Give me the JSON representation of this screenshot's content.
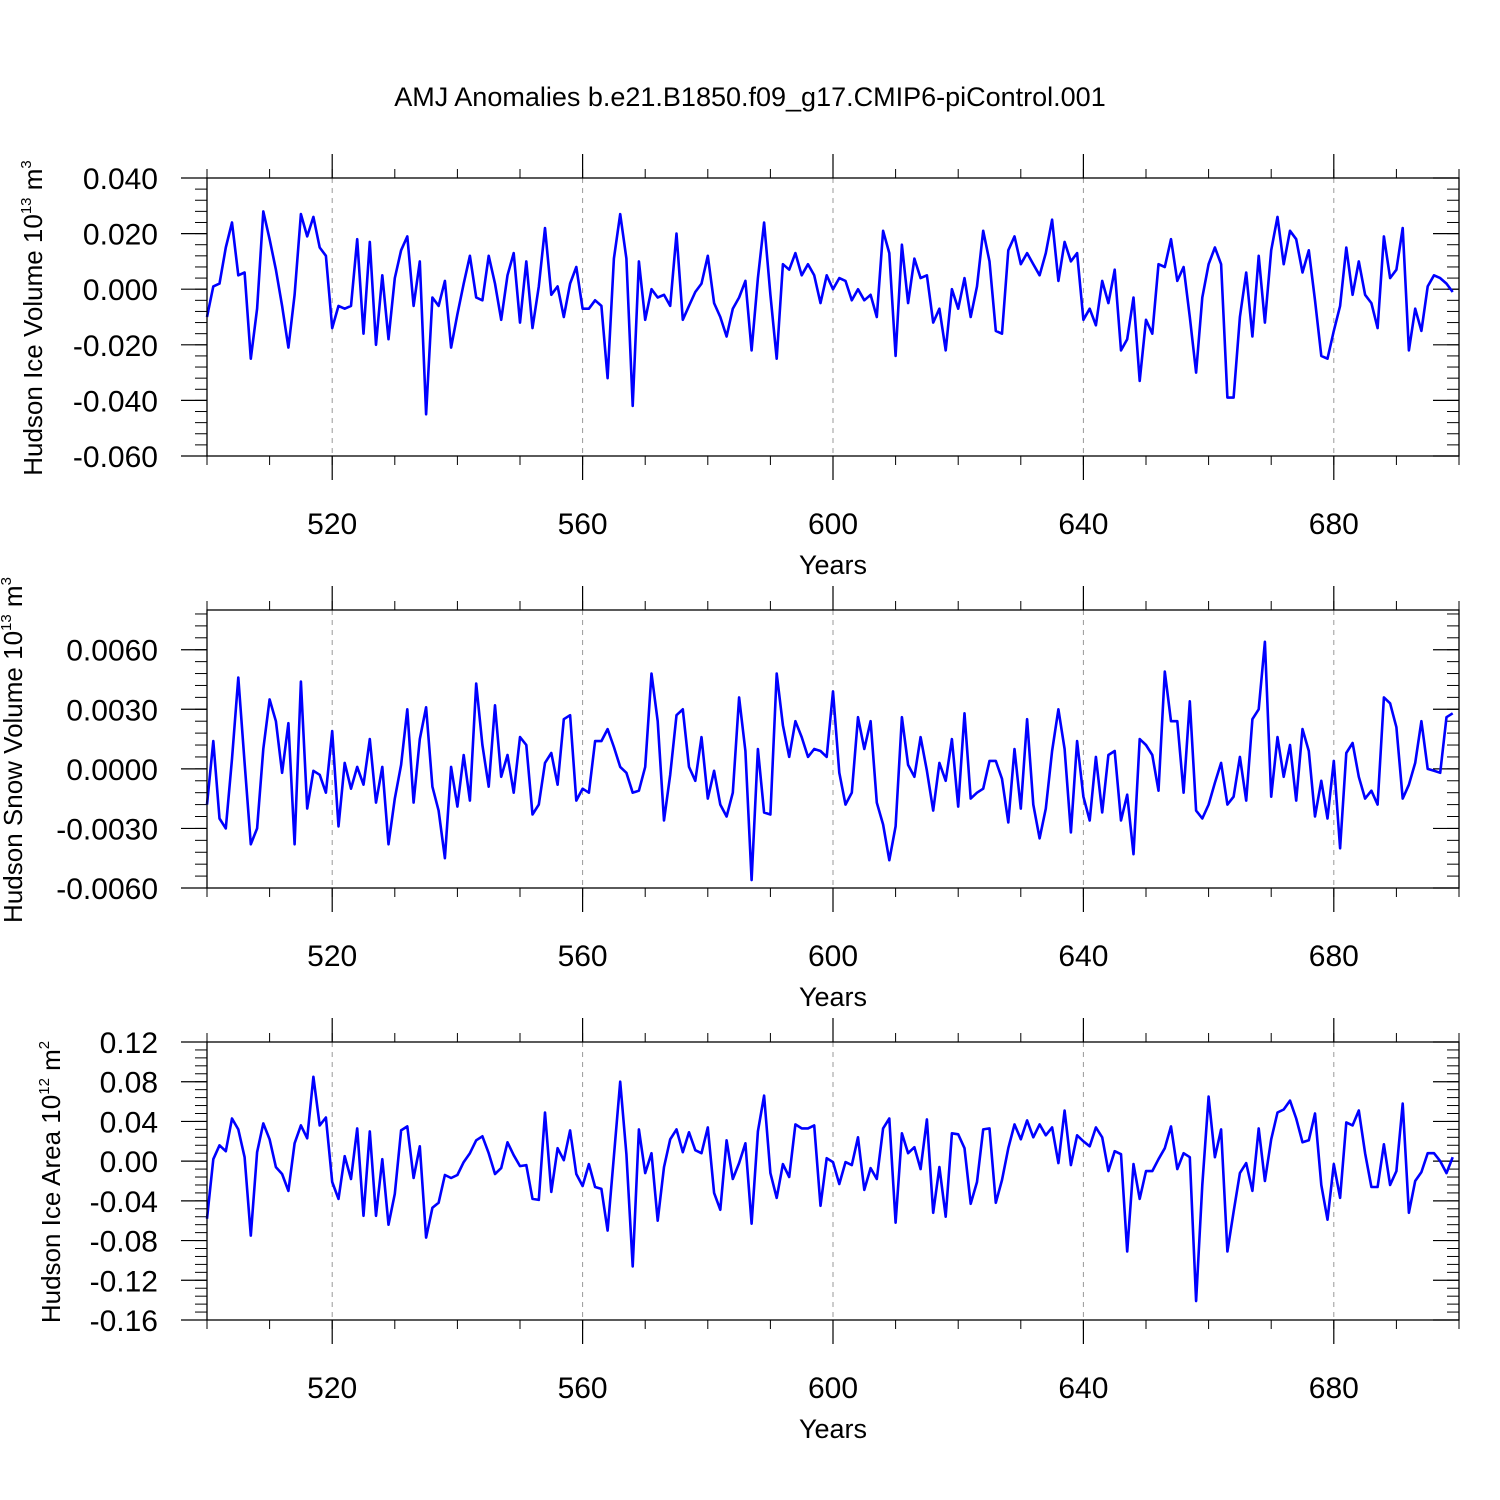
{
  "figure": {
    "title": "AMJ Anomalies b.e21.B1850.f09_g17.CMIP6-piControl.001",
    "line_color": "#0000ff",
    "grid_color": "#999999"
  },
  "chart_data": [
    {
      "type": "line",
      "name": "hudson-ice-volume",
      "ylabel_main": "Hudson Ice Volume 10",
      "ylabel_exp": "13",
      "ylabel_unit": " m",
      "ylabel_unit_exp": "3",
      "xlabel": "Years",
      "xlim": [
        500,
        700
      ],
      "xticks": [
        520,
        560,
        600,
        640,
        680
      ],
      "ylim": [
        -0.06,
        0.04
      ],
      "yticks": [
        -0.06,
        -0.04,
        -0.02,
        0.0,
        0.02,
        0.04
      ],
      "ytick_labels": [
        "-0.060",
        "-0.040",
        "-0.020",
        "0.000",
        "0.020",
        "0.040"
      ],
      "x_start": 500,
      "values": [
        -0.01,
        0.001,
        0.002,
        0.015,
        0.024,
        0.005,
        0.006,
        -0.025,
        -0.007,
        0.028,
        0.018,
        0.007,
        -0.006,
        -0.021,
        -0.002,
        0.027,
        0.019,
        0.026,
        0.015,
        0.012,
        -0.014,
        -0.006,
        -0.007,
        -0.006,
        0.018,
        -0.016,
        0.017,
        -0.02,
        0.005,
        -0.018,
        0.004,
        0.014,
        0.019,
        -0.006,
        0.01,
        -0.045,
        -0.003,
        -0.006,
        0.003,
        -0.021,
        -0.009,
        0.002,
        0.012,
        -0.003,
        -0.004,
        0.012,
        0.002,
        -0.011,
        0.005,
        0.013,
        -0.012,
        0.01,
        -0.014,
        0.001,
        0.022,
        -0.002,
        0.001,
        -0.01,
        0.002,
        0.008,
        -0.007,
        -0.007,
        -0.004,
        -0.006,
        -0.032,
        0.011,
        0.027,
        0.011,
        -0.042,
        0.01,
        -0.011,
        0.0,
        -0.003,
        -0.002,
        -0.006,
        0.02,
        -0.011,
        -0.006,
        -0.001,
        0.002,
        0.012,
        -0.005,
        -0.01,
        -0.017,
        -0.007,
        -0.003,
        0.003,
        -0.022,
        0.004,
        0.024,
        -0.002,
        -0.025,
        0.009,
        0.007,
        0.013,
        0.005,
        0.009,
        0.005,
        -0.005,
        0.005,
        0.0,
        0.004,
        0.003,
        -0.004,
        0.0,
        -0.004,
        -0.002,
        -0.01,
        0.021,
        0.013,
        -0.024,
        0.016,
        -0.005,
        0.011,
        0.004,
        0.005,
        -0.012,
        -0.007,
        -0.022,
        0.0,
        -0.007,
        0.004,
        -0.01,
        0.001,
        0.021,
        0.01,
        -0.015,
        -0.016,
        0.014,
        0.019,
        0.009,
        0.013,
        0.009,
        0.005,
        0.013,
        0.025,
        0.003,
        0.017,
        0.01,
        0.013,
        -0.011,
        -0.007,
        -0.013,
        0.003,
        -0.005,
        0.007,
        -0.022,
        -0.018,
        -0.003,
        -0.033,
        -0.011,
        -0.016,
        0.009,
        0.008,
        0.018,
        0.003,
        0.008,
        -0.01,
        -0.03,
        -0.003,
        0.009,
        0.015,
        0.009,
        -0.039,
        -0.039,
        -0.01,
        0.006,
        -0.017,
        0.012,
        -0.012,
        0.014,
        0.026,
        0.009,
        0.021,
        0.018,
        0.006,
        0.014,
        -0.004,
        -0.024,
        -0.025,
        -0.015,
        -0.006,
        0.015,
        -0.002,
        0.01,
        -0.002,
        -0.005,
        -0.014,
        0.019,
        0.004,
        0.007,
        0.022,
        -0.022,
        -0.007,
        -0.015,
        0.001,
        0.005,
        0.004,
        0.002,
        -0.001
      ]
    },
    {
      "type": "line",
      "name": "hudson-snow-volume",
      "ylabel_main": "Hudson Snow Volume 10",
      "ylabel_exp": "13",
      "ylabel_unit": " m",
      "ylabel_unit_exp": "3",
      "xlabel": "Years",
      "xlim": [
        500,
        700
      ],
      "xticks": [
        520,
        560,
        600,
        640,
        680
      ],
      "ylim": [
        -0.006,
        0.008
      ],
      "yticks": [
        -0.006,
        -0.003,
        0.0,
        0.003,
        0.006
      ],
      "ytick_labels": [
        "-0.0060",
        "-0.0030",
        "0.0000",
        "0.0030",
        "0.0060"
      ],
      "x_start": 500,
      "values": [
        -0.0018,
        0.0014,
        -0.0025,
        -0.003,
        0.0005,
        0.0046,
        0.0003,
        -0.0038,
        -0.003,
        0.001,
        0.0035,
        0.0024,
        -0.0002,
        0.0023,
        -0.0038,
        0.0044,
        -0.002,
        -0.0001,
        -0.0003,
        -0.0012,
        0.0019,
        -0.0029,
        0.0003,
        -0.001,
        0.0001,
        -0.0008,
        0.0015,
        -0.0017,
        0.0001,
        -0.0038,
        -0.0015,
        0.0002,
        0.003,
        -0.0017,
        0.0015,
        0.0031,
        -0.0009,
        -0.0021,
        -0.0045,
        0.0001,
        -0.0019,
        0.0007,
        -0.0016,
        0.0043,
        0.0012,
        -0.0009,
        0.0032,
        -0.0004,
        0.0007,
        -0.0012,
        0.0016,
        0.0012,
        -0.0023,
        -0.0018,
        0.0003,
        0.0008,
        -0.0008,
        0.0025,
        0.0027,
        -0.0016,
        -0.001,
        -0.0012,
        0.0014,
        0.0014,
        0.002,
        0.0011,
        0.0001,
        -0.0002,
        -0.0012,
        -0.0011,
        0.0001,
        0.0048,
        0.0024,
        -0.0026,
        -0.0003,
        0.0027,
        0.003,
        0.0001,
        -0.0006,
        0.0016,
        -0.0015,
        -0.0001,
        -0.0018,
        -0.0024,
        -0.0012,
        0.0036,
        0.0009,
        -0.0056,
        0.001,
        -0.0022,
        -0.0023,
        0.0048,
        0.0022,
        0.0006,
        0.0024,
        0.0016,
        0.0006,
        0.001,
        0.0009,
        0.0006,
        0.0039,
        -0.0002,
        -0.0018,
        -0.0012,
        0.0026,
        0.001,
        0.0024,
        -0.0017,
        -0.0028,
        -0.0046,
        -0.0029,
        0.0026,
        0.0002,
        -0.0004,
        0.0016,
        -0.0001,
        -0.0021,
        0.0003,
        -0.0006,
        0.0015,
        -0.0019,
        0.0028,
        -0.0015,
        -0.0012,
        -0.001,
        0.0004,
        0.0004,
        -0.0005,
        -0.0027,
        0.001,
        -0.002,
        0.0025,
        -0.0018,
        -0.0035,
        -0.002,
        0.0009,
        0.003,
        0.001,
        -0.0032,
        0.0014,
        -0.0014,
        -0.0026,
        0.0006,
        -0.0022,
        0.0007,
        0.0009,
        -0.0026,
        -0.0013,
        -0.0043,
        0.0015,
        0.0012,
        0.0007,
        -0.0011,
        0.0049,
        0.0024,
        0.0024,
        -0.0012,
        0.0034,
        -0.0021,
        -0.0025,
        -0.0018,
        -0.0007,
        0.0003,
        -0.0018,
        -0.0014,
        0.0006,
        -0.0016,
        0.0025,
        0.003,
        0.0064,
        -0.0014,
        0.0016,
        -0.0004,
        0.0012,
        -0.0016,
        0.002,
        0.0009,
        -0.0024,
        -0.0006,
        -0.0025,
        0.0004,
        -0.004,
        0.0008,
        0.0013,
        -0.0004,
        -0.0015,
        -0.0011,
        -0.0018,
        0.0036,
        0.0033,
        0.0021,
        -0.0015,
        -0.0008,
        0.0003,
        0.0024,
        0.0,
        -0.0001,
        -0.0002,
        0.0026,
        0.0028
      ]
    },
    {
      "type": "line",
      "name": "hudson-ice-area",
      "ylabel_main": "Hudson Ice Area 10",
      "ylabel_exp": "12",
      "ylabel_unit": " m",
      "ylabel_unit_exp": "2",
      "xlabel": "Years",
      "xlim": [
        500,
        700
      ],
      "xticks": [
        520,
        560,
        600,
        640,
        680
      ],
      "ylim": [
        -0.16,
        0.12
      ],
      "yticks": [
        -0.16,
        -0.12,
        -0.08,
        -0.04,
        0.0,
        0.04,
        0.08,
        0.12
      ],
      "ytick_labels": [
        "-0.16",
        "-0.12",
        "-0.08",
        "-0.04",
        "0.00",
        "0.04",
        "0.08",
        "0.12"
      ],
      "x_start": 500,
      "values": [
        -0.058,
        0.002,
        0.016,
        0.01,
        0.043,
        0.032,
        0.004,
        -0.075,
        0.009,
        0.038,
        0.022,
        -0.006,
        -0.013,
        -0.03,
        0.018,
        0.036,
        0.023,
        0.085,
        0.036,
        0.044,
        -0.021,
        -0.038,
        0.005,
        -0.018,
        0.033,
        -0.055,
        0.03,
        -0.055,
        0.002,
        -0.064,
        -0.033,
        0.031,
        0.035,
        -0.017,
        0.015,
        -0.077,
        -0.047,
        -0.042,
        -0.014,
        -0.017,
        -0.014,
        -0.001,
        0.008,
        0.021,
        0.025,
        0.008,
        -0.013,
        -0.007,
        0.019,
        0.006,
        -0.005,
        -0.004,
        -0.038,
        -0.039,
        0.049,
        -0.031,
        0.013,
        0.001,
        0.031,
        -0.013,
        -0.025,
        -0.003,
        -0.026,
        -0.028,
        -0.07,
        0.005,
        0.08,
        0.007,
        -0.106,
        0.032,
        -0.012,
        0.008,
        -0.06,
        -0.006,
        0.022,
        0.032,
        0.009,
        0.029,
        0.011,
        0.008,
        0.034,
        -0.032,
        -0.049,
        0.021,
        -0.018,
        -0.002,
        0.018,
        -0.063,
        0.03,
        0.066,
        -0.012,
        -0.037,
        -0.003,
        -0.016,
        0.037,
        0.033,
        0.033,
        0.036,
        -0.045,
        0.003,
        -0.001,
        -0.023,
        -0.001,
        -0.004,
        0.024,
        -0.029,
        -0.007,
        -0.018,
        0.033,
        0.043,
        -0.062,
        0.028,
        0.008,
        0.014,
        -0.008,
        0.042,
        -0.052,
        -0.006,
        -0.056,
        0.028,
        0.027,
        0.013,
        -0.043,
        -0.021,
        0.032,
        0.033,
        -0.042,
        -0.019,
        0.013,
        0.037,
        0.022,
        0.041,
        0.024,
        0.037,
        0.026,
        0.034,
        -0.002,
        0.051,
        -0.004,
        0.026,
        0.02,
        0.015,
        0.034,
        0.024,
        -0.01,
        0.01,
        0.007,
        -0.091,
        -0.003,
        -0.038,
        -0.01,
        -0.01,
        0.002,
        0.013,
        0.035,
        -0.008,
        0.008,
        0.004,
        -0.141,
        -0.024,
        0.065,
        0.004,
        0.032,
        -0.091,
        -0.051,
        -0.012,
        -0.002,
        -0.03,
        0.033,
        -0.02,
        0.022,
        0.049,
        0.052,
        0.061,
        0.043,
        0.019,
        0.021,
        0.048,
        -0.024,
        -0.059,
        -0.003,
        -0.037,
        0.039,
        0.036,
        0.051,
        0.008,
        -0.026,
        -0.026,
        0.017,
        -0.024,
        -0.01,
        0.058,
        -0.052,
        -0.02,
        -0.011,
        0.008,
        0.008,
        0.0,
        -0.012,
        0.004
      ]
    }
  ]
}
